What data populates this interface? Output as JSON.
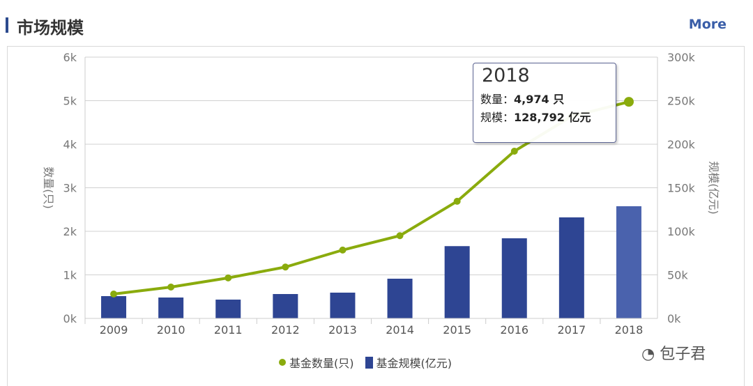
{
  "header": {
    "title": "市场规模",
    "more_label": "More"
  },
  "tooltip": {
    "year": "2018",
    "count_label": "数量：",
    "count_value": "4,974 只",
    "scale_label": "规模：",
    "scale_value": "128,792 亿元"
  },
  "watermark": "包子君",
  "chart_data": {
    "type": "bar+line",
    "categories": [
      "2009",
      "2010",
      "2011",
      "2012",
      "2013",
      "2014",
      "2015",
      "2016",
      "2017",
      "2018"
    ],
    "series": [
      {
        "name": "基金数量(只)",
        "type": "line",
        "axis": "left",
        "color": "#8aab0d",
        "values": [
          560,
          720,
          930,
          1180,
          1570,
          1900,
          2690,
          3840,
          4640,
          4974
        ]
      },
      {
        "name": "基金规模(亿元)",
        "type": "bar",
        "axis": "right",
        "color": "#2e4593",
        "highlight_color": "#4a62ad",
        "values": [
          25600,
          24000,
          21600,
          28000,
          29600,
          45600,
          83000,
          92000,
          116000,
          128792
        ]
      }
    ],
    "y_left": {
      "label": "数量(只)",
      "range": [
        0,
        6000
      ],
      "ticks": [
        "0k",
        "1k",
        "2k",
        "3k",
        "4k",
        "5k",
        "6k"
      ]
    },
    "y_right": {
      "label": "规模(亿元)",
      "range": [
        0,
        300000
      ],
      "ticks": [
        "0k",
        "50k",
        "100k",
        "150k",
        "200k",
        "250k",
        "300k"
      ]
    },
    "grid": true,
    "legend": "bottom"
  }
}
